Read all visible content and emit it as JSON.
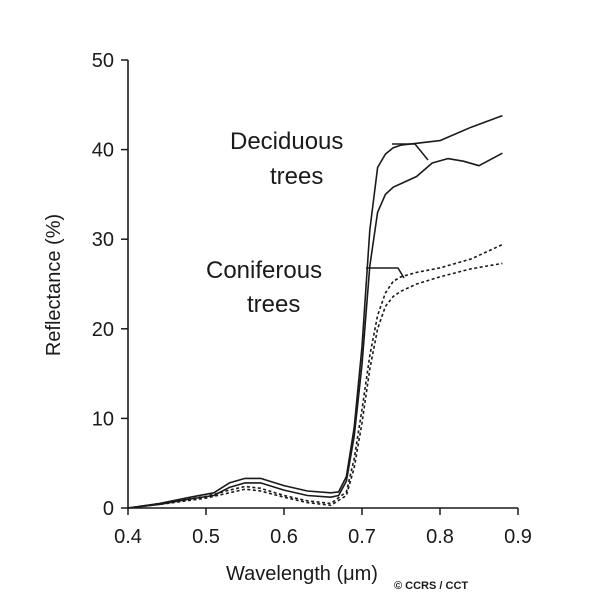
{
  "chart_data": {
    "type": "line",
    "xlabel": "Wavelength (μm)",
    "ylabel": "Reflectance (%)",
    "xlim": [
      0.4,
      0.9
    ],
    "ylim": [
      0,
      50
    ],
    "x_ticks": [
      "0.4",
      "0.5",
      "0.6",
      "0.7",
      "0.8",
      "0.9"
    ],
    "y_ticks": [
      "0",
      "10",
      "20",
      "30",
      "40",
      "50"
    ],
    "grid": false,
    "series": [
      {
        "group": "deciduous",
        "style": "solid",
        "x": [
          0.4,
          0.44,
          0.48,
          0.51,
          0.53,
          0.55,
          0.57,
          0.6,
          0.63,
          0.66,
          0.67,
          0.68,
          0.69,
          0.7,
          0.71,
          0.72,
          0.73,
          0.74,
          0.75,
          0.77,
          0.8,
          0.84,
          0.88
        ],
        "y": [
          0,
          0.5,
          1.2,
          1.7,
          2.8,
          3.3,
          3.3,
          2.5,
          1.9,
          1.7,
          1.8,
          3.5,
          9,
          18,
          31,
          38,
          39.5,
          40.2,
          40.5,
          40.7,
          41,
          42.5,
          43.8
        ]
      },
      {
        "group": "deciduous",
        "style": "solid",
        "x": [
          0.4,
          0.44,
          0.48,
          0.51,
          0.53,
          0.55,
          0.57,
          0.6,
          0.63,
          0.66,
          0.67,
          0.68,
          0.69,
          0.7,
          0.71,
          0.72,
          0.73,
          0.74,
          0.75,
          0.77,
          0.79,
          0.81,
          0.83,
          0.85,
          0.88
        ],
        "y": [
          0,
          0.4,
          1.0,
          1.4,
          2.3,
          2.8,
          2.8,
          2.0,
          1.4,
          1.2,
          1.4,
          3.0,
          8,
          16,
          27,
          33,
          35,
          35.8,
          36.2,
          37,
          38.5,
          39,
          38.7,
          38.2,
          39.6
        ]
      },
      {
        "group": "coniferous",
        "style": "dashed",
        "x": [
          0.4,
          0.45,
          0.5,
          0.53,
          0.55,
          0.57,
          0.6,
          0.63,
          0.66,
          0.68,
          0.69,
          0.7,
          0.71,
          0.72,
          0.73,
          0.74,
          0.75,
          0.77,
          0.8,
          0.84,
          0.88
        ],
        "y": [
          0,
          0.6,
          1.3,
          2.0,
          2.4,
          2.2,
          1.4,
          0.8,
          0.5,
          1.8,
          5.5,
          11,
          17,
          21.5,
          24,
          25.3,
          25.8,
          26.3,
          26.8,
          27.8,
          29.4
        ]
      },
      {
        "group": "coniferous",
        "style": "dashed",
        "x": [
          0.4,
          0.45,
          0.5,
          0.53,
          0.55,
          0.57,
          0.6,
          0.63,
          0.66,
          0.68,
          0.69,
          0.7,
          0.71,
          0.72,
          0.73,
          0.74,
          0.75,
          0.77,
          0.8,
          0.84,
          0.88
        ],
        "y": [
          0,
          0.5,
          1.1,
          1.7,
          2.1,
          1.9,
          1.2,
          0.6,
          0.3,
          1.4,
          4.5,
          9.5,
          15.5,
          20,
          22.5,
          23.6,
          24.2,
          25,
          25.8,
          26.7,
          27.3
        ]
      }
    ],
    "annotations": [
      {
        "text_lines": [
          "Deciduous",
          "trees"
        ],
        "points_to": "deciduous"
      },
      {
        "text_lines": [
          "Coniferous",
          "trees"
        ],
        "points_to": "coniferous"
      }
    ],
    "credit": "© CCRS / CCT"
  }
}
